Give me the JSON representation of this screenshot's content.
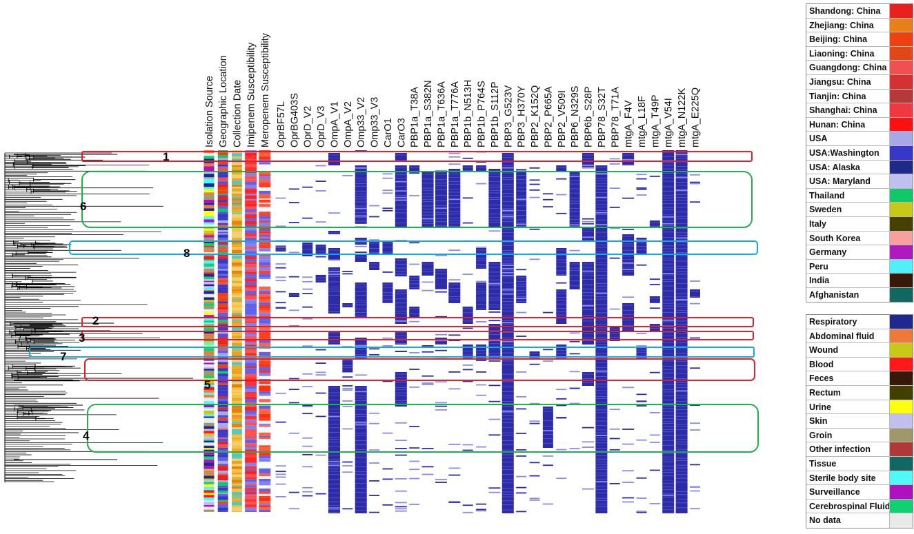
{
  "columns": [
    "Isolation Source",
    "Geographic Location",
    "Collection Date",
    "Imipenem Susceptibility",
    "Meropenem Susceptibility",
    "OprBF57L",
    "OprBG403S",
    "OprD_V2",
    "OprD_V3",
    "OmpA_V1",
    "OmpA_V2",
    "Omp33_V2",
    "Omp33_V3",
    "CarO1",
    "CarO3",
    "PBP1a_T38A",
    "PBP1a_S382N",
    "PBP1a_T636A",
    "PBP1a_T776A",
    "PBP1b_N513H",
    "PBP1b_P764S",
    "PBP1b_S112P",
    "PBP3_G523V",
    "PBP3_H370Y",
    "PBP2_K152Q",
    "PBP2_P665A",
    "PBP2_V509I",
    "PBP6_N329S",
    "PBP6b_S28P",
    "PBP78_S32T",
    "PBP78_T71A",
    "mtgA_F4V",
    "mtgA_L18F",
    "mtgA_T49P",
    "mtgA_V54I",
    "mtgA_N122K",
    "mtgA_E225Q"
  ],
  "clusters": [
    {
      "label": "1",
      "color": "#e0202a"
    },
    {
      "label": "6",
      "color": "#20b050"
    },
    {
      "label": "8",
      "color": "#18a8e0"
    },
    {
      "label": "2",
      "color": "#e0202a"
    },
    {
      "label": "3",
      "color": "#e0202a"
    },
    {
      "label": "7",
      "color": "#18a8e0"
    },
    {
      "label": "5",
      "color": "#e0202a"
    },
    {
      "label": "4",
      "color": "#20b050"
    }
  ],
  "location_legend": [
    {
      "label": "Shandong: China",
      "color": "#e8201e"
    },
    {
      "label": "Zhejiang: China",
      "color": "#e8801a"
    },
    {
      "label": "Beijing: China",
      "color": "#f04010"
    },
    {
      "label": "Liaoning: China",
      "color": "#e04818"
    },
    {
      "label": "Guangdong: China",
      "color": "#f05050"
    },
    {
      "label": "Jiangsu: China",
      "color": "#d83030"
    },
    {
      "label": "Tianjin: China",
      "color": "#b83838"
    },
    {
      "label": "Shanghai: China",
      "color": "#f03840"
    },
    {
      "label": "Hunan: China",
      "color": "#ff1010"
    },
    {
      "label": "USA",
      "color": "#a8a8e8"
    },
    {
      "label": "USA:Washington",
      "color": "#3838c8"
    },
    {
      "label": "USA: Alaska",
      "color": "#202888"
    },
    {
      "label": "USA: Maryland",
      "color": "#c0c0f0"
    },
    {
      "label": "Thailand",
      "color": "#10c868"
    },
    {
      "label": "Sweden",
      "color": "#c8c818"
    },
    {
      "label": "Italy",
      "color": "#484000"
    },
    {
      "label": "South Korea",
      "color": "#f8a0a0"
    },
    {
      "label": "Germany",
      "color": "#b018c0"
    },
    {
      "label": "Peru",
      "color": "#50f0f8"
    },
    {
      "label": "India",
      "color": "#381808"
    },
    {
      "label": "Afghanistan",
      "color": "#106860"
    }
  ],
  "source_legend": [
    {
      "label": "Respiratory",
      "color": "#202890"
    },
    {
      "label": "Abdominal fluid",
      "color": "#f07838"
    },
    {
      "label": "Wound",
      "color": "#c8c818"
    },
    {
      "label": "Blood",
      "color": "#ff1818"
    },
    {
      "label": "Feces",
      "color": "#381808"
    },
    {
      "label": "Rectum",
      "color": "#404000"
    },
    {
      "label": "Urine",
      "color": "#ffff10"
    },
    {
      "label": "Skin",
      "color": "#c0c0f0"
    },
    {
      "label": "Groin",
      "color": "#a09868"
    },
    {
      "label": "Other infection",
      "color": "#b03838"
    },
    {
      "label": "Tissue",
      "color": "#106860"
    },
    {
      "label": "Sterile body site",
      "color": "#50f8f8"
    },
    {
      "label": "Surveillance",
      "color": "#b010c0"
    },
    {
      "label": "Cerebrospinal Fluid",
      "color": "#10d070"
    },
    {
      "label": "No data",
      "color": "#eaeaea"
    }
  ],
  "colors": {
    "marker": "#2c2ca8",
    "tree": "#000000"
  }
}
